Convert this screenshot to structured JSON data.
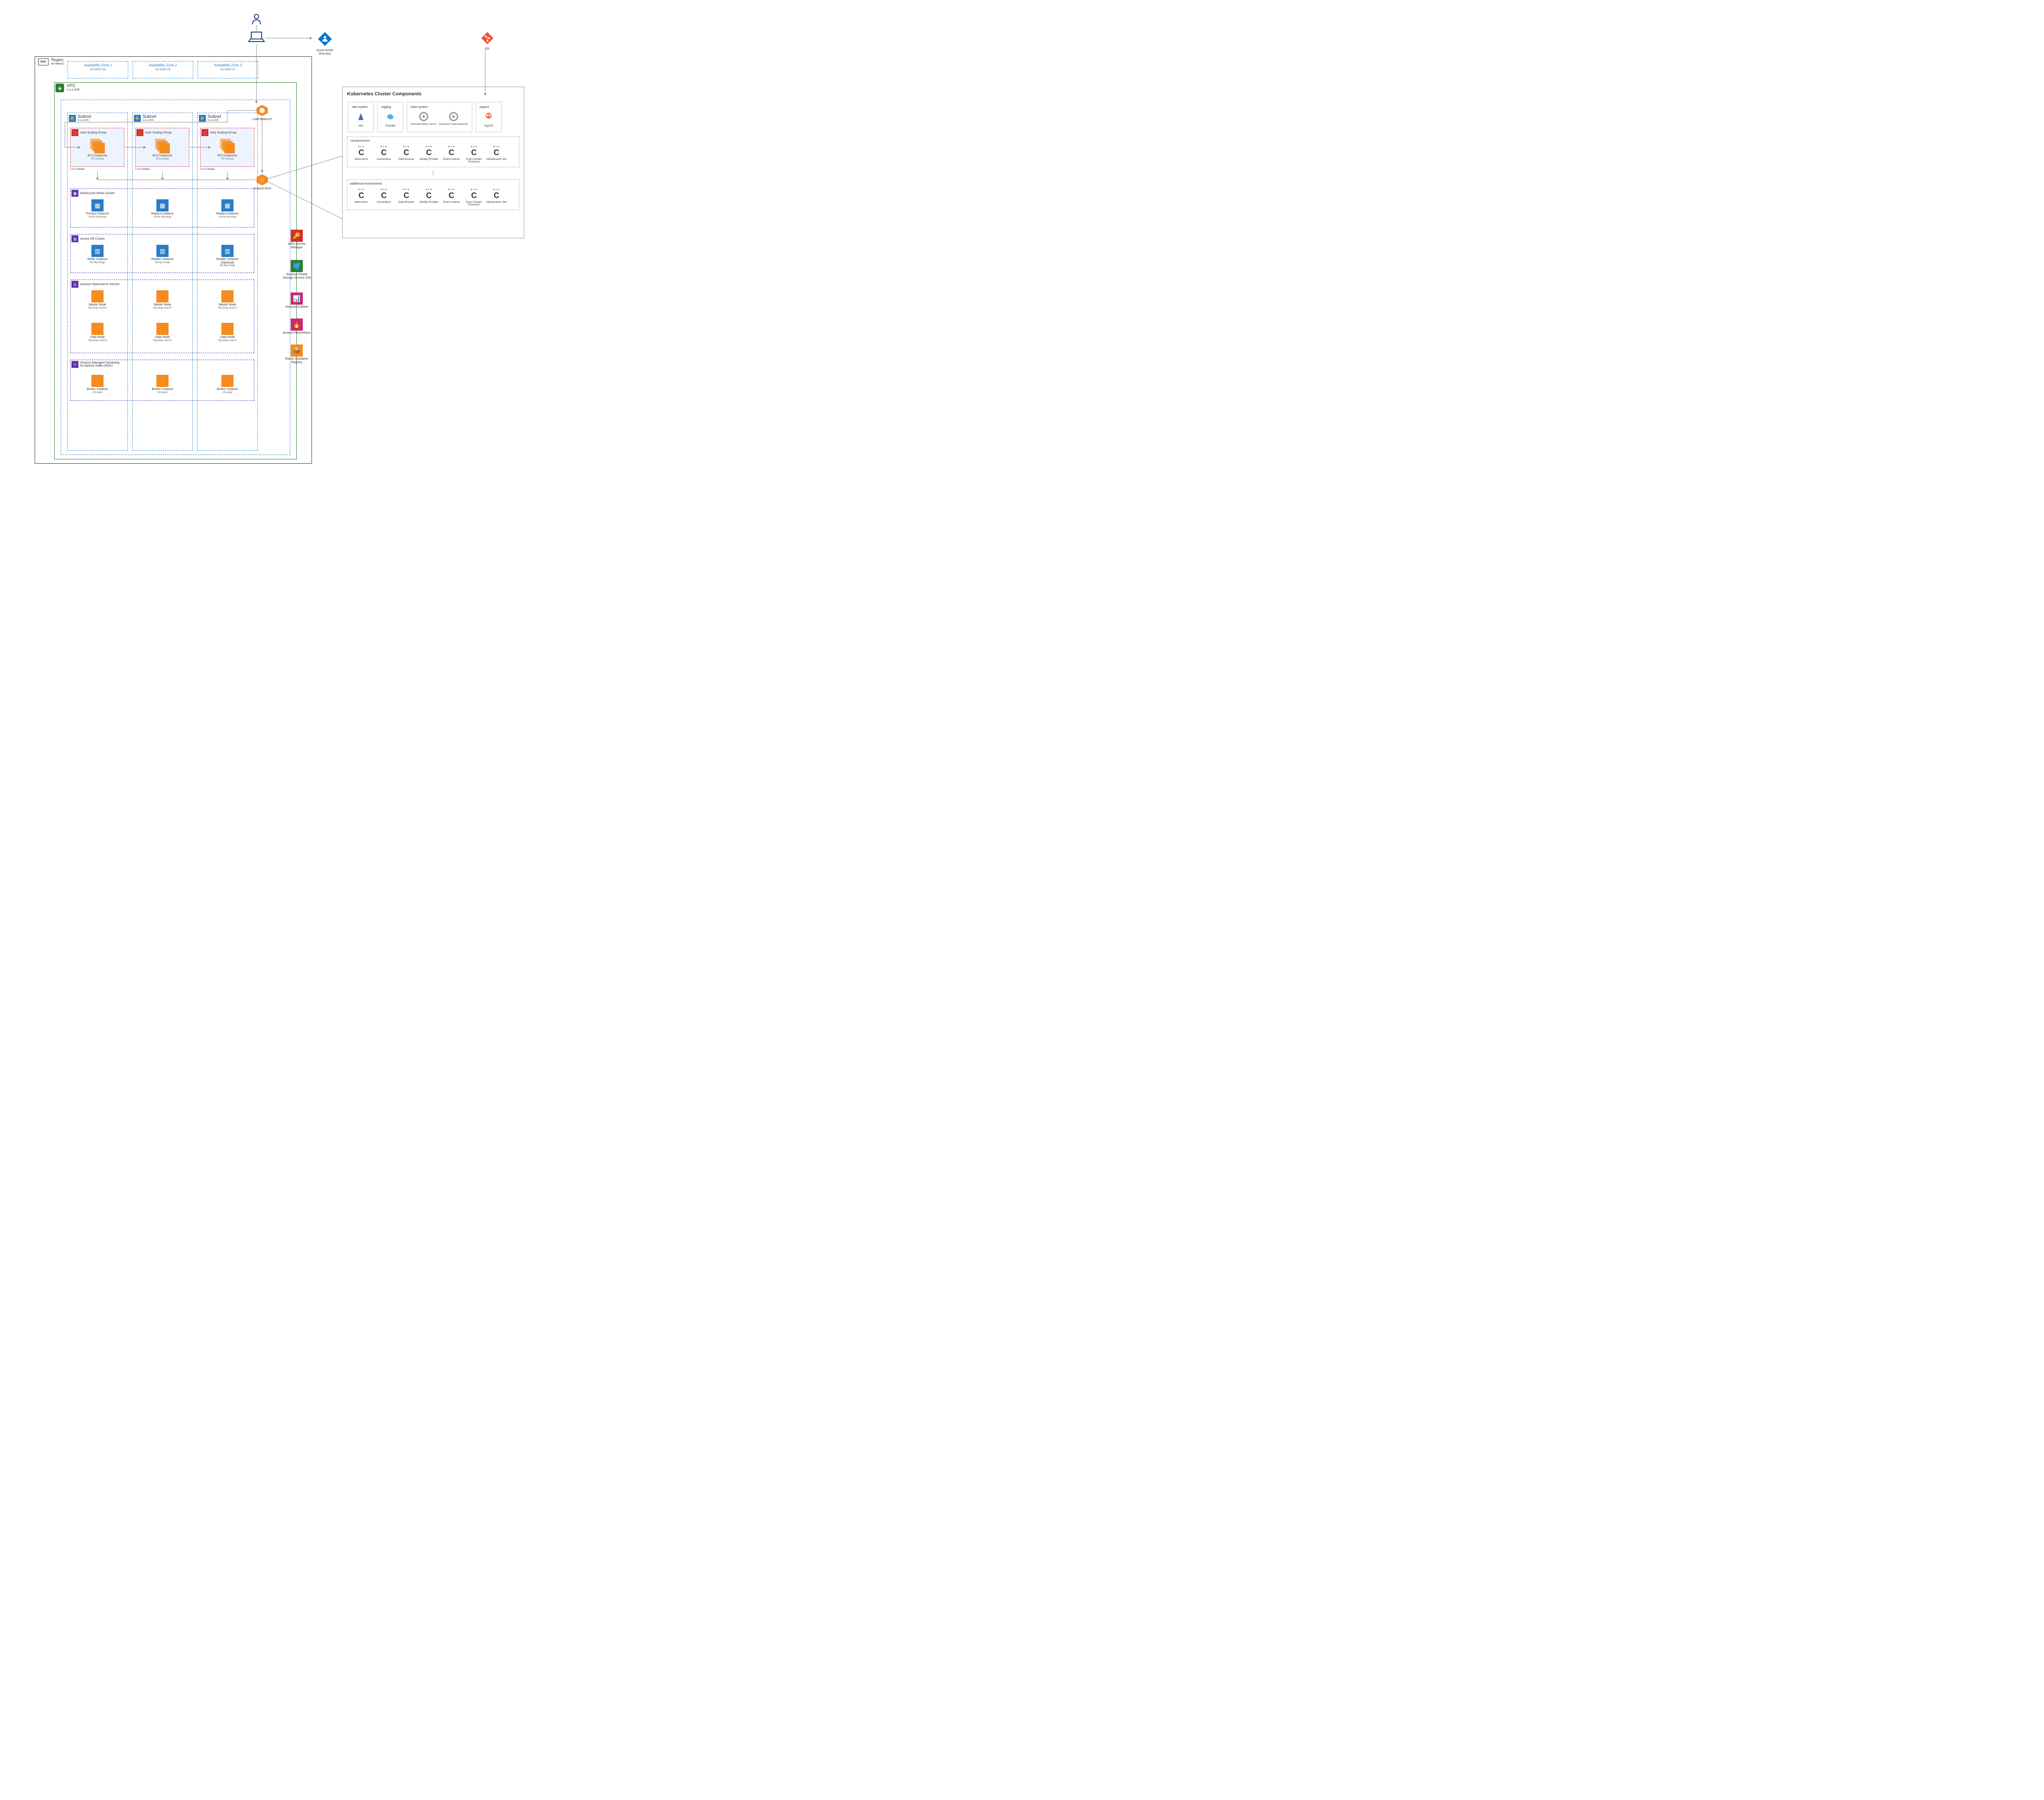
{
  "region": {
    "label": "Region",
    "sub": "eu-west-1"
  },
  "vpc": {
    "label": "VPC",
    "cidr": "x.x.x.x/16"
  },
  "azs": [
    {
      "label": "Availability Zone 1",
      "sub": "eu-west-1a"
    },
    {
      "label": "Availability Zone 2",
      "sub": "eu-west-1b"
    },
    {
      "label": "Availability Zone 3",
      "sub": "eu-west-1c"
    }
  ],
  "subnet": {
    "label": "Subnet",
    "cidr": "x.x.x.x/24"
  },
  "asg": {
    "label": "Auto Scaling Group"
  },
  "ec2": {
    "label": "EC2 Instances",
    "type": "m5.2xlarge",
    "nodes": "1 to 3 Nodes"
  },
  "redis": {
    "cluster": "Elasticache Redis Cluster",
    "primary": "Primary Instance",
    "replica": "Replica Instance",
    "type": "cache.r6g.large"
  },
  "aurora": {
    "cluster": "Aurora DB Cluster",
    "writer": "Writer Instance",
    "reader": "Reader Instance",
    "optional": "Reader Instance (Optional)",
    "type": "db.r6g.xlarge"
  },
  "opensearch": {
    "cluster": "Amazon Opensearch Service",
    "master": "Master Node",
    "data": "Data Node",
    "type": "r6g.large.search"
  },
  "msk": {
    "cluster": "Amazon Managed Streaming for Apache Kafka (MSK)",
    "broker": "Broker Instance",
    "type": "m5.large"
  },
  "lb": "Load Balancer",
  "eks": "Amazon EKS",
  "side": {
    "secrets": "AWS Secrets Manager",
    "s3": "Amazon Simple Storage Service (S3)",
    "grafana": "Amazon Grafana",
    "prometheus": "Amazon Prometheus",
    "ecr": "Elastic Container Registry"
  },
  "top": {
    "aad": "Azure Active Directory",
    "git": "Git"
  },
  "k8s": {
    "title": "Kubernetes Cluster Components",
    "ns": {
      "istio": {
        "label": "istio-system",
        "name": "Istio"
      },
      "logging": {
        "label": "logging",
        "name": "Fluentbit"
      },
      "kube": {
        "label": "kube-system",
        "m1": "Kubernetes Metrics Server",
        "m2": "Kubernetes Cluster Autoscaler"
      },
      "argo": {
        "label": "argocd",
        "name": "ArgoCD"
      }
    },
    "env1": "<environment>",
    "env2": "additional environments",
    "services": [
      "Meta-forms",
      "Connections",
      "Data Browser",
      "Identity Provider",
      "Event Listener",
      "Event Stream Processor",
      "Maintenance Job"
    ]
  },
  "colors": {
    "orange": "#f68b1e",
    "blue": "#2a7cc7",
    "red": "#d32f2f",
    "green": "#2e7d32",
    "pink": "#c62a71",
    "purple": "#5e35b1"
  }
}
